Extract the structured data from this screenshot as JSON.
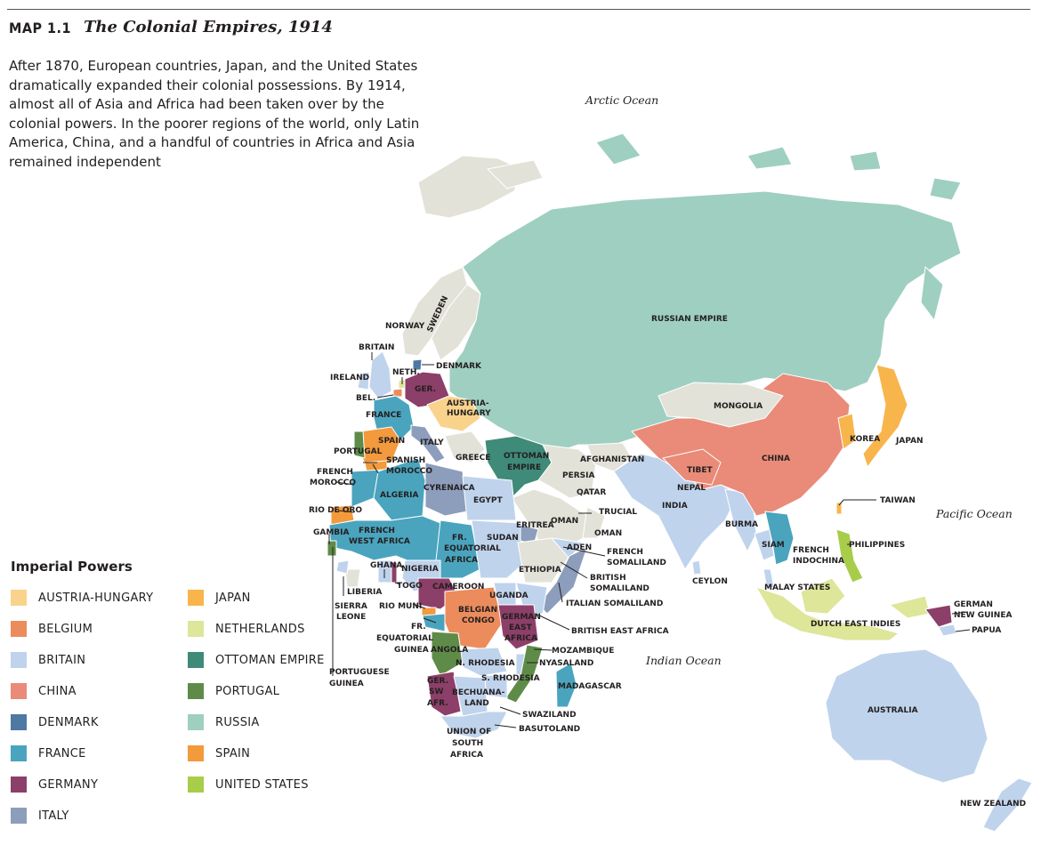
{
  "header": {
    "map_number": "MAP 1.1",
    "title": "The Colonial Empires, 1914"
  },
  "caption": "After 1870, European countries, Japan, and the United States dramatically expanded their colonial possessions. By 1914, almost all of Asia and Africa had been taken over by the colonial powers. In the poorer regions of the world, only Latin America, China, and a handful of countries in Africa and Asia remained independent",
  "legend": {
    "title": "Imperial Powers",
    "items": [
      {
        "label": "AUSTRIA-HUNGARY",
        "color": "#f9d28c"
      },
      {
        "label": "BELGIUM",
        "color": "#ec8c5c"
      },
      {
        "label": "BRITAIN",
        "color": "#bfd3ec"
      },
      {
        "label": "CHINA",
        "color": "#e98b78"
      },
      {
        "label": "DENMARK",
        "color": "#4f78a3"
      },
      {
        "label": "FRANCE",
        "color": "#4aa4be"
      },
      {
        "label": "GERMANY",
        "color": "#8c3f68"
      },
      {
        "label": "ITALY",
        "color": "#8d9dbc"
      },
      {
        "label": "JAPAN",
        "color": "#f8b54c"
      },
      {
        "label": "NETHERLANDS",
        "color": "#dde699"
      },
      {
        "label": "OTTOMAN EMPIRE",
        "color": "#3f8a78"
      },
      {
        "label": "PORTUGAL",
        "color": "#5e8c48"
      },
      {
        "label": "RUSSIA",
        "color": "#9fcfc0"
      },
      {
        "label": "SPAIN",
        "color": "#f29a3c"
      },
      {
        "label": "UNITED STATES",
        "color": "#a8cd4a"
      }
    ]
  },
  "oceans": {
    "arctic": "Arctic Ocean",
    "pacific": "Pacific Ocean",
    "indian": "Indian Ocean"
  },
  "map_colors": {
    "independent": "#e3e2d8",
    "russia": "#9fcfc0",
    "britain": "#bfd3ec",
    "france": "#4aa4be",
    "germany": "#8c3f68",
    "china": "#e98b78",
    "ottoman": "#3f8a78",
    "japan": "#f8b54c",
    "netherlands": "#dde699",
    "portugal": "#5e8c48",
    "spain": "#f29a3c",
    "italy": "#8d9dbc",
    "belgium": "#ec8c5c",
    "austria": "#f9d28c",
    "denmark": "#4f78a3",
    "usa": "#a8cd4a"
  },
  "labels": {
    "russian_empire": "RUSSIAN EMPIRE",
    "norway": "NORWAY",
    "sweden": "SWEDEN",
    "britain": "BRITAIN",
    "ireland": "IRELAND",
    "neth": "NETH.",
    "denmark": "DENMARK",
    "bel": "BEL.",
    "ger": "GER.",
    "austria_1": "AUSTRIA-",
    "austria_2": "HUNGARY",
    "france": "FRANCE",
    "spain": "SPAIN",
    "portugal": "PORTUGAL",
    "italy": "ITALY",
    "greece": "GREECE",
    "ottoman_1": "OTTOMAN",
    "ottoman_2": "EMPIRE",
    "mongolia": "MONGOLIA",
    "china": "CHINA",
    "tibet": "TIBET",
    "nepal": "NEPAL",
    "afghanistan": "AFGHANISTAN",
    "persia": "PERSIA",
    "qatar": "QATAR",
    "trucial": "TRUCIAL",
    "oman_inner": "OMAN",
    "oman_outer": "OMAN",
    "aden": "ADEN",
    "india": "INDIA",
    "burma": "BURMA",
    "siam": "SIAM",
    "french_indochina_1": "FRENCH",
    "french_indochina_2": "INDOCHINA",
    "korea": "KOREA",
    "japan": "JAPAN",
    "taiwan": "TAIWAN",
    "philippines": "PHILIPPINES",
    "ceylon": "CEYLON",
    "malay_states": "MALAY STATES",
    "dutch_east_indies": "DUTCH EAST INDIES",
    "german_new_guinea_1": "GERMAN",
    "german_new_guinea_2": "NEW GUINEA",
    "papua": "PAPUA",
    "australia": "AUSTRALIA",
    "new_zealand": "NEW ZEALAND",
    "spanish_morocco_1": "SPANISH",
    "spanish_morocco_2": "MOROCCO",
    "french_morocco_1": "FRENCH",
    "french_morocco_2": "MOROCCO",
    "algeria": "ALGERIA",
    "cyrenaica": "CYRENAICA",
    "egypt": "EGYPT",
    "rio_de_oro": "RIO DE ORO",
    "gambia": "GAMBIA",
    "french_west_africa_1": "FRENCH",
    "french_west_africa_2": "WEST AFRICA",
    "fr_equatorial_1": "FR.",
    "fr_equatorial_2": "EQUATORIAL",
    "fr_equatorial_3": "AFRICA",
    "sudan": "SUDAN",
    "eritrea": "ERITREA",
    "ethiopia": "ETHIOPIA",
    "french_somaliland_1": "FRENCH",
    "french_somaliland_2": "SOMALILAND",
    "british_somaliland_1": "BRITISH",
    "british_somaliland_2": "SOMALILAND",
    "italian_somaliland": "ITALIAN SOMALILAND",
    "british_east_africa": "BRITISH EAST AFRICA",
    "ghana": "GHANA",
    "togo": "TOGO",
    "nigeria": "NIGERIA",
    "cameroon": "CAMEROON",
    "liberia": "LIBERIA",
    "sierra_leone_1": "SIERRA",
    "sierra_leone_2": "LEONE",
    "portuguese_guinea_1": "PORTUGUESE",
    "portuguese_guinea_2": "GUINEA",
    "rio_muni": "RIO MUNI",
    "fr_equatorial_guinea_1": "FR.",
    "fr_equatorial_guinea_2": "EQUATORIAL",
    "fr_equatorial_guinea_3": "GUINEA",
    "uganda": "UGANDA",
    "belgian_congo_1": "BELGIAN",
    "belgian_congo_2": "CONGO",
    "german_east_africa_1": "GERMAN",
    "german_east_africa_2": "EAST",
    "german_east_africa_3": "AFRICA",
    "angola": "ANGOLA",
    "n_rhodesia": "N. RHODESIA",
    "s_rhodesia": "S. RHODESIA",
    "mozambique": "MOZAMBIQUE",
    "nyasaland": "NYASALAND",
    "madagascar": "MADAGASCAR",
    "ger_sw_afr_1": "GER.",
    "ger_sw_afr_2": "SW",
    "ger_sw_afr_3": "AFR.",
    "bechuanaland_1": "BECHUANA-",
    "bechuanaland_2": "LAND",
    "swaziland": "SWAZILAND",
    "basutoland": "BASUTOLAND",
    "union_sa_1": "UNION OF",
    "union_sa_2": "SOUTH",
    "union_sa_3": "AFRICA"
  }
}
